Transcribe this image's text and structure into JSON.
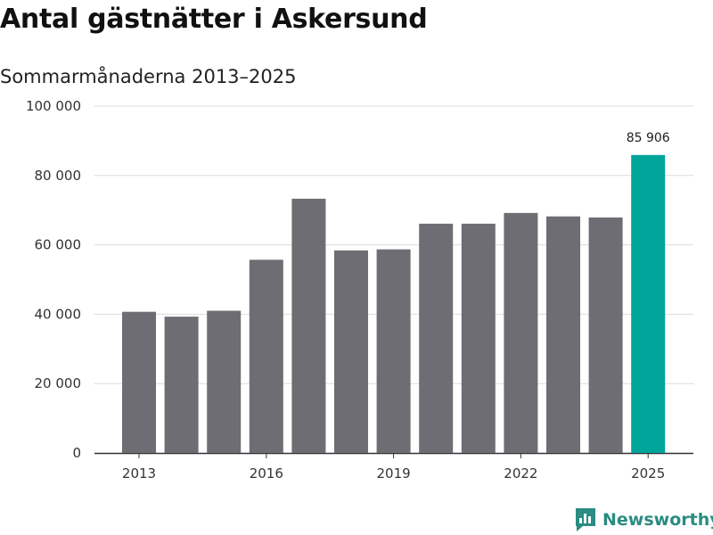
{
  "title": "Antal gästnätter i Askersund",
  "subtitle": "Sommarmånaderna 2013–2025",
  "brand": {
    "name": "Newsworthy",
    "icon": "newsworthy-logo-icon"
  },
  "colors": {
    "bar": "#6e6d73",
    "highlight": "#00a499",
    "grid": "#dcdcdc",
    "axis": "#333333"
  },
  "chart_data": {
    "type": "bar",
    "title": "Antal gästnätter i Askersund",
    "subtitle": "Sommarmånaderna 2013–2025",
    "categories": [
      "2013",
      "2014",
      "2015",
      "2016",
      "2017",
      "2018",
      "2019",
      "2020",
      "2021",
      "2022",
      "2023",
      "2024",
      "2025"
    ],
    "values": [
      40700,
      39300,
      41000,
      55700,
      73300,
      58400,
      58700,
      66100,
      66100,
      69200,
      68200,
      67900,
      85906
    ],
    "x_tick_labels": [
      "2013",
      "2016",
      "2019",
      "2022",
      "2025"
    ],
    "y_tick_labels": [
      "0",
      "20 000",
      "40 000",
      "60 000",
      "80 000",
      "100 000"
    ],
    "y_ticks": [
      0,
      20000,
      40000,
      60000,
      80000,
      100000
    ],
    "ylim": [
      0,
      100000
    ],
    "highlight_category": "2025",
    "data_labels": [
      {
        "category": "2025",
        "text": "85 906"
      }
    ],
    "grid": true,
    "xlabel": "",
    "ylabel": ""
  }
}
